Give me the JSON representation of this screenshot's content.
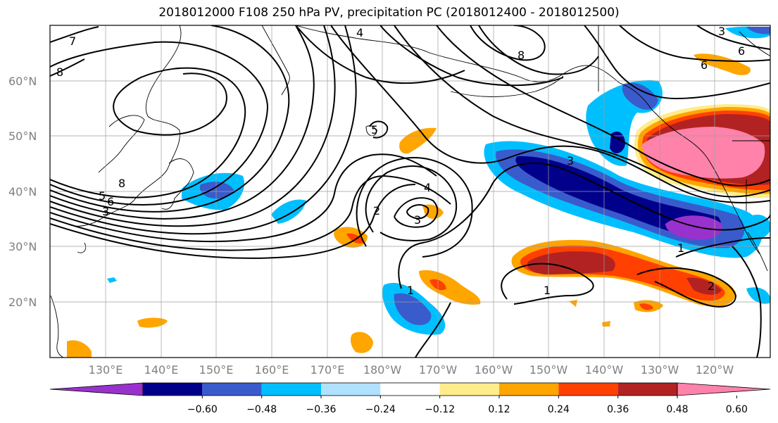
{
  "title": "2018012000 F108 250 hPa PV, precipitation PC (2018012400 - 2018012500)",
  "latitude_labels": [
    "60°N",
    "50°N",
    "40°N",
    "30°N",
    "20°N"
  ],
  "longitude_labels": [
    "130°E",
    "140°E",
    "150°E",
    "160°E",
    "170°E",
    "180°W",
    "170°W",
    "160°W",
    "150°W",
    "140°W",
    "130°W",
    "120°W"
  ],
  "colorbar": {
    "colors": [
      "#9932cc",
      "#00008b",
      "#3a5bcc",
      "#00bfff",
      "#b0e2ff",
      "#ffffff",
      "#ffec8b",
      "#ffa500",
      "#ff4000",
      "#b22222",
      "#ff82ab"
    ],
    "tick_labels": [
      "-0.60",
      "-0.48",
      "-0.36",
      "-0.24",
      "-0.12",
      "0.12",
      "0.24",
      "0.36",
      "0.48",
      "0.60"
    ]
  },
  "contour_labels": [
    {
      "text": "7"
    },
    {
      "text": "8"
    },
    {
      "text": "4"
    },
    {
      "text": "8"
    },
    {
      "text": "3"
    },
    {
      "text": "6"
    },
    {
      "text": "6"
    },
    {
      "text": "8"
    },
    {
      "text": "6"
    },
    {
      "text": "5"
    },
    {
      "text": "3"
    },
    {
      "text": "4"
    },
    {
      "text": "2"
    },
    {
      "text": "3"
    },
    {
      "text": "1"
    },
    {
      "text": "1"
    },
    {
      "text": "1"
    },
    {
      "text": "2"
    },
    {
      "text": "3"
    },
    {
      "text": "5"
    }
  ]
}
